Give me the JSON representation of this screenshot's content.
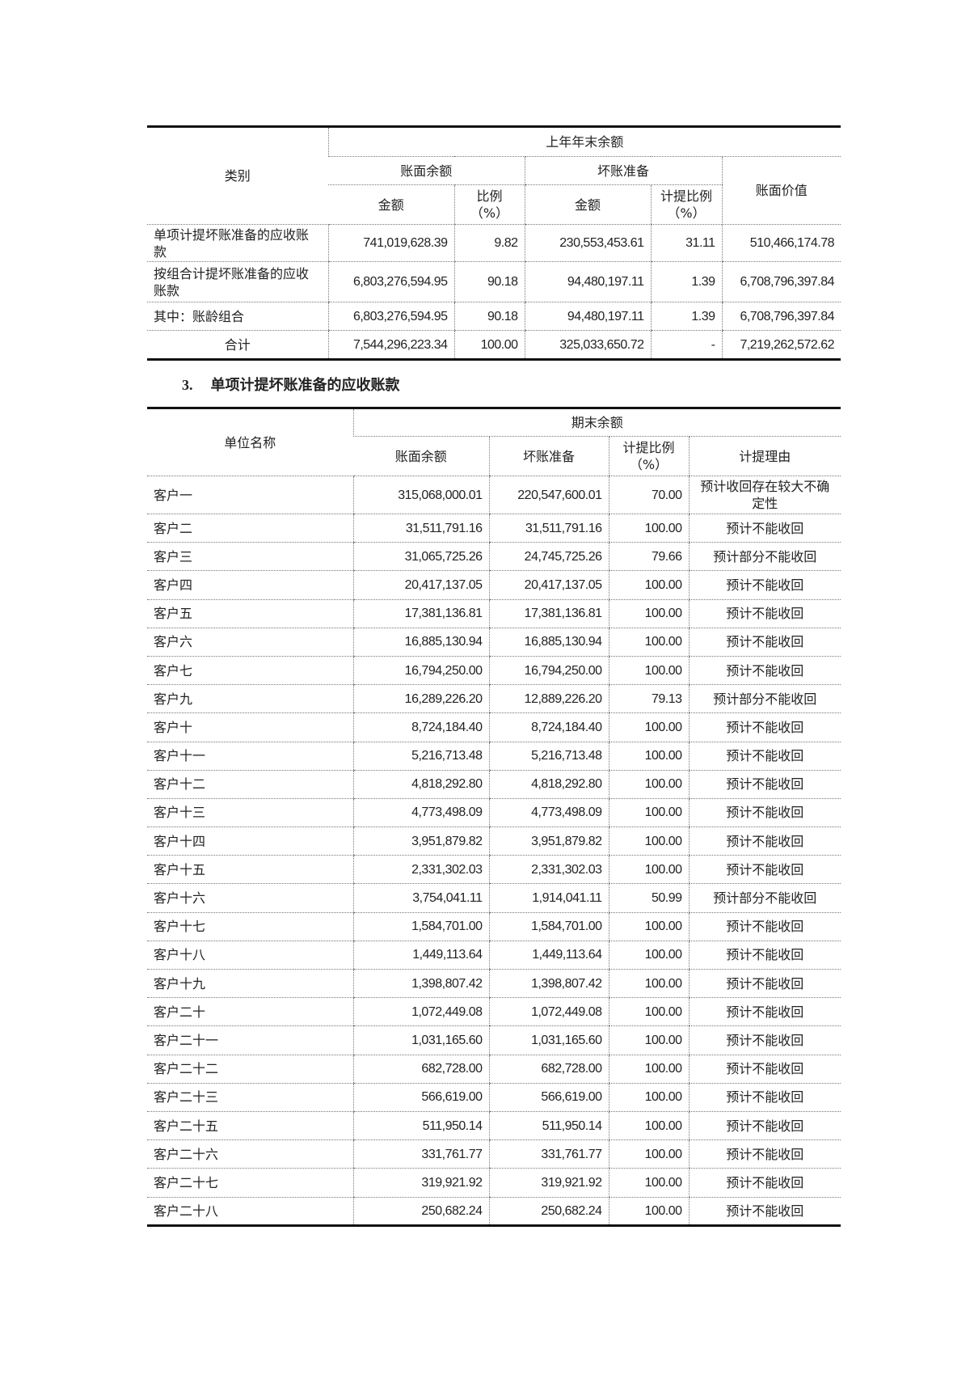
{
  "table1": {
    "header": {
      "category": "类别",
      "group": "上年年末余额",
      "book_balance": "账面余额",
      "bad_debt": "坏账准备",
      "book_value": "账面价值",
      "amount": "金额",
      "ratio": "比例（%）",
      "amount2": "金额",
      "provision_ratio": "计提比例（%）"
    },
    "rows": [
      {
        "category": "单项计提坏账准备的应收账款",
        "amount": "741,019,628.39",
        "ratio": "9.82",
        "bad_debt": "230,553,453.61",
        "provision_ratio": "31.11",
        "book_value": "510,466,174.78"
      },
      {
        "category": "按组合计提坏账准备的应收账款",
        "amount": "6,803,276,594.95",
        "ratio": "90.18",
        "bad_debt": "94,480,197.11",
        "provision_ratio": "1.39",
        "book_value": "6,708,796,397.84"
      },
      {
        "category": "其中：账龄组合",
        "amount": "6,803,276,594.95",
        "ratio": "90.18",
        "bad_debt": "94,480,197.11",
        "provision_ratio": "1.39",
        "book_value": "6,708,796,397.84"
      },
      {
        "category": "合计",
        "amount": "7,544,296,223.34",
        "ratio": "100.00",
        "bad_debt": "325,033,650.72",
        "provision_ratio": "-",
        "book_value": "7,219,262,572.62"
      }
    ]
  },
  "section": {
    "number": "3.",
    "title": "单项计提坏账准备的应收账款"
  },
  "table2": {
    "header": {
      "unit_name": "单位名称",
      "group": "期末余额",
      "book_balance": "账面余额",
      "bad_debt": "坏账准备",
      "provision_ratio": "计提比例（%）",
      "reason": "计提理由"
    },
    "rows": [
      {
        "name": "客户一",
        "balance": "315,068,000.01",
        "bad_debt": "220,547,600.01",
        "ratio": "70.00",
        "reason": "预计收回存在较大不确定性"
      },
      {
        "name": "客户二",
        "balance": "31,511,791.16",
        "bad_debt": "31,511,791.16",
        "ratio": "100.00",
        "reason": "预计不能收回"
      },
      {
        "name": "客户三",
        "balance": "31,065,725.26",
        "bad_debt": "24,745,725.26",
        "ratio": "79.66",
        "reason": "预计部分不能收回"
      },
      {
        "name": "客户四",
        "balance": "20,417,137.05",
        "bad_debt": "20,417,137.05",
        "ratio": "100.00",
        "reason": "预计不能收回"
      },
      {
        "name": "客户五",
        "balance": "17,381,136.81",
        "bad_debt": "17,381,136.81",
        "ratio": "100.00",
        "reason": "预计不能收回"
      },
      {
        "name": "客户六",
        "balance": "16,885,130.94",
        "bad_debt": "16,885,130.94",
        "ratio": "100.00",
        "reason": "预计不能收回"
      },
      {
        "name": "客户七",
        "balance": "16,794,250.00",
        "bad_debt": "16,794,250.00",
        "ratio": "100.00",
        "reason": "预计不能收回"
      },
      {
        "name": "客户九",
        "balance": "16,289,226.20",
        "bad_debt": "12,889,226.20",
        "ratio": "79.13",
        "reason": "预计部分不能收回"
      },
      {
        "name": "客户十",
        "balance": "8,724,184.40",
        "bad_debt": "8,724,184.40",
        "ratio": "100.00",
        "reason": "预计不能收回"
      },
      {
        "name": "客户十一",
        "balance": "5,216,713.48",
        "bad_debt": "5,216,713.48",
        "ratio": "100.00",
        "reason": "预计不能收回"
      },
      {
        "name": "客户十二",
        "balance": "4,818,292.80",
        "bad_debt": "4,818,292.80",
        "ratio": "100.00",
        "reason": "预计不能收回"
      },
      {
        "name": "客户十三",
        "balance": "4,773,498.09",
        "bad_debt": "4,773,498.09",
        "ratio": "100.00",
        "reason": "预计不能收回"
      },
      {
        "name": "客户十四",
        "balance": "3,951,879.82",
        "bad_debt": "3,951,879.82",
        "ratio": "100.00",
        "reason": "预计不能收回"
      },
      {
        "name": "客户十五",
        "balance": "2,331,302.03",
        "bad_debt": "2,331,302.03",
        "ratio": "100.00",
        "reason": "预计不能收回"
      },
      {
        "name": "客户十六",
        "balance": "3,754,041.11",
        "bad_debt": "1,914,041.11",
        "ratio": "50.99",
        "reason": "预计部分不能收回"
      },
      {
        "name": "客户十七",
        "balance": "1,584,701.00",
        "bad_debt": "1,584,701.00",
        "ratio": "100.00",
        "reason": "预计不能收回"
      },
      {
        "name": "客户十八",
        "balance": "1,449,113.64",
        "bad_debt": "1,449,113.64",
        "ratio": "100.00",
        "reason": "预计不能收回"
      },
      {
        "name": "客户十九",
        "balance": "1,398,807.42",
        "bad_debt": "1,398,807.42",
        "ratio": "100.00",
        "reason": "预计不能收回"
      },
      {
        "name": "客户二十",
        "balance": "1,072,449.08",
        "bad_debt": "1,072,449.08",
        "ratio": "100.00",
        "reason": "预计不能收回"
      },
      {
        "name": "客户二十一",
        "balance": "1,031,165.60",
        "bad_debt": "1,031,165.60",
        "ratio": "100.00",
        "reason": "预计不能收回"
      },
      {
        "name": "客户二十二",
        "balance": "682,728.00",
        "bad_debt": "682,728.00",
        "ratio": "100.00",
        "reason": "预计不能收回"
      },
      {
        "name": "客户二十三",
        "balance": "566,619.00",
        "bad_debt": "566,619.00",
        "ratio": "100.00",
        "reason": "预计不能收回"
      },
      {
        "name": "客户二十五",
        "balance": "511,950.14",
        "bad_debt": "511,950.14",
        "ratio": "100.00",
        "reason": "预计不能收回"
      },
      {
        "name": "客户二十六",
        "balance": "331,761.77",
        "bad_debt": "331,761.77",
        "ratio": "100.00",
        "reason": "预计不能收回"
      },
      {
        "name": "客户二十七",
        "balance": "319,921.92",
        "bad_debt": "319,921.92",
        "ratio": "100.00",
        "reason": "预计不能收回"
      },
      {
        "name": "客户二十八",
        "balance": "250,682.24",
        "bad_debt": "250,682.24",
        "ratio": "100.00",
        "reason": "预计不能收回"
      }
    ]
  }
}
